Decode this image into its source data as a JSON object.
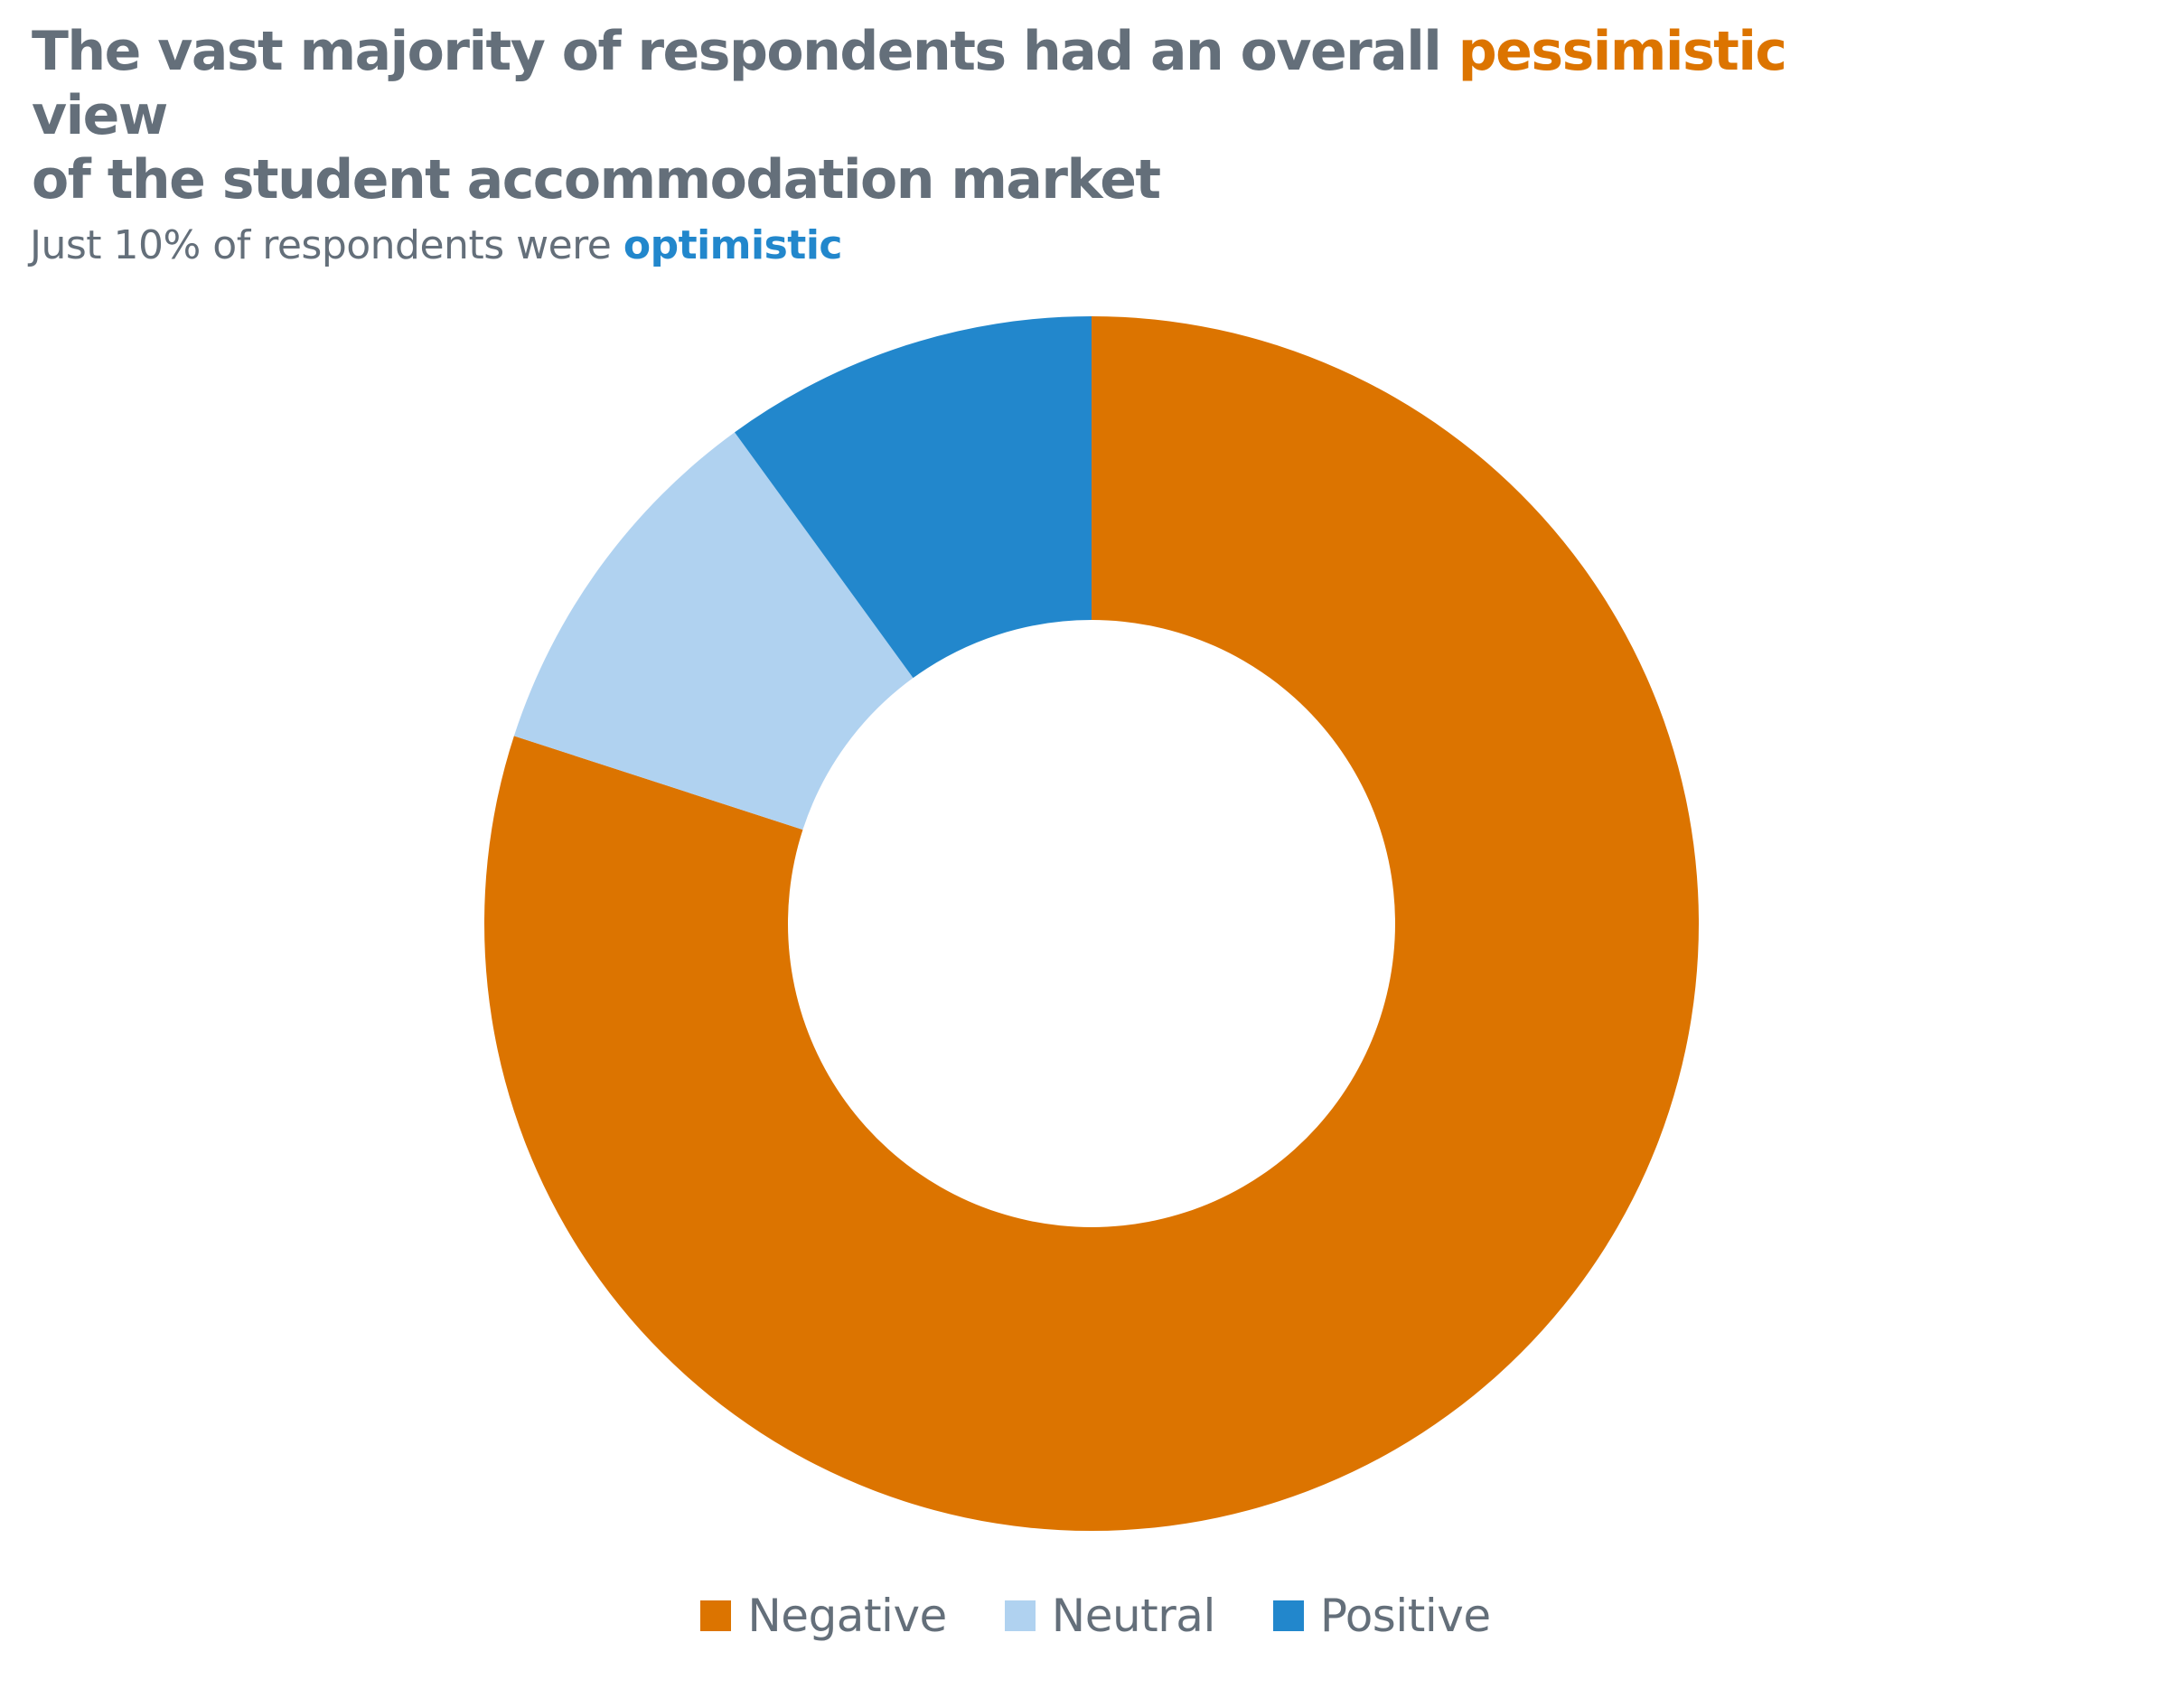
{
  "title": {
    "before": "The vast majority of respondents had an overall ",
    "highlight": "pessimistic",
    "after_line1": " view",
    "line2": "of the student accommodation market",
    "highlight_color": "#dc7400"
  },
  "subtitle": {
    "before": "Just 10% of respondents were ",
    "highlight": "optimistic",
    "highlight_color": "#2287cc"
  },
  "chart_data": {
    "type": "pie",
    "variant": "donut",
    "title": "The vast majority of respondents had an overall pessimistic view of the student accommodation market",
    "subtitle": "Just 10% of respondents were optimistic",
    "unit": "%",
    "start": "top",
    "direction": "clockwise",
    "categories": [
      "Negative",
      "Neutral",
      "Positive"
    ],
    "values": [
      80,
      10,
      10
    ],
    "colors": [
      "#dc7400",
      "#b0d2f0",
      "#2287cc"
    ],
    "legend": {
      "position": "bottom",
      "entries": [
        "Negative",
        "Neutral",
        "Positive"
      ]
    }
  }
}
